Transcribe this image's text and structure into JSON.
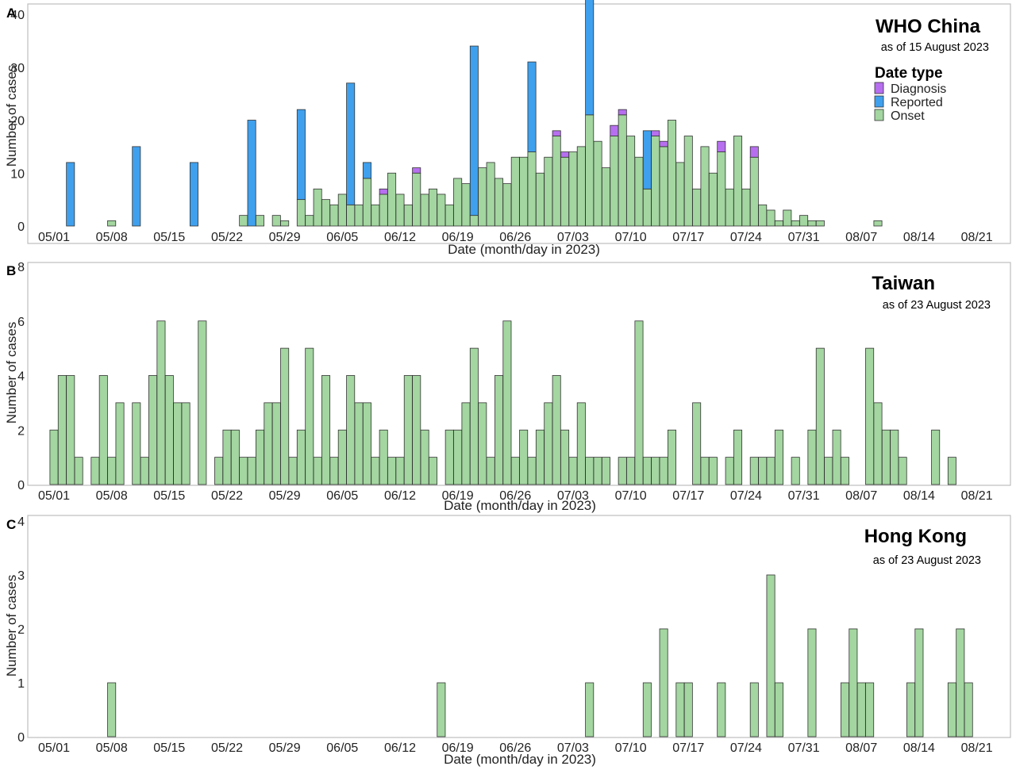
{
  "colors": {
    "Onset": "#a3d6a0",
    "Reported": "#3fa0ee",
    "Diagnosis": "#b76ff0"
  },
  "chart_data": [
    {
      "type": "bar",
      "stacked": true,
      "panel": "A",
      "title": "WHO China",
      "subtitle": "as of 15 August 2023",
      "xlabel": "Date (month/day in 2023)",
      "ylabel": "Number of cases",
      "x_start": "2023-05-01",
      "ylim": [
        0,
        40
      ],
      "yticks": [
        0,
        10,
        20,
        30,
        40
      ],
      "xtick_labels": [
        "05/01",
        "05/08",
        "05/15",
        "05/22",
        "05/29",
        "06/05",
        "06/12",
        "06/19",
        "06/26",
        "07/03",
        "07/10",
        "07/17",
        "07/24",
        "07/31",
        "08/07",
        "08/14",
        "08/21"
      ],
      "legend_title": "Date type",
      "legend": [
        "Diagnosis",
        "Reported",
        "Onset"
      ],
      "legend_position": "top-right",
      "series": [
        {
          "name": "Onset",
          "values": [
            0,
            0,
            0,
            0,
            0,
            0,
            0,
            1,
            0,
            0,
            0,
            0,
            0,
            0,
            0,
            0,
            0,
            0,
            0,
            0,
            0,
            0,
            0,
            2,
            0,
            2,
            0,
            2,
            1,
            0,
            5,
            2,
            7,
            5,
            4,
            6,
            4,
            4,
            9,
            4,
            6,
            10,
            6,
            4,
            10,
            6,
            7,
            6,
            4,
            9,
            8,
            2,
            11,
            12,
            9,
            8,
            13,
            13,
            14,
            10,
            13,
            17,
            13,
            14,
            15,
            21,
            16,
            11,
            17,
            21,
            17,
            13,
            7,
            17,
            15,
            20,
            12,
            17,
            7,
            15,
            10,
            14,
            7,
            17,
            7,
            13,
            4,
            3,
            1,
            3,
            1,
            2,
            1,
            1,
            0,
            0,
            0,
            0,
            0,
            0,
            1,
            0,
            0,
            0,
            0,
            0,
            0,
            0,
            0,
            0,
            0,
            0,
            0
          ]
        },
        {
          "name": "Reported",
          "values": [
            0,
            0,
            12,
            0,
            0,
            0,
            0,
            0,
            0,
            0,
            15,
            0,
            0,
            0,
            0,
            0,
            0,
            12,
            0,
            0,
            0,
            0,
            0,
            0,
            20,
            0,
            0,
            0,
            0,
            0,
            17,
            0,
            0,
            0,
            0,
            0,
            23,
            0,
            3,
            0,
            0,
            0,
            0,
            0,
            0,
            0,
            0,
            0,
            0,
            0,
            0,
            32,
            0,
            0,
            0,
            0,
            0,
            0,
            17,
            0,
            0,
            0,
            0,
            0,
            0,
            23,
            0,
            0,
            0,
            0,
            0,
            0,
            11,
            0,
            0,
            0,
            0,
            0,
            0,
            0,
            0,
            0,
            0,
            0,
            0,
            0,
            0,
            0,
            0,
            0,
            0,
            0,
            0,
            0,
            0,
            0,
            0,
            0,
            0,
            0,
            0,
            0,
            0,
            0,
            0,
            0,
            0,
            0,
            0,
            0,
            0,
            0,
            0
          ]
        },
        {
          "name": "Diagnosis",
          "values": [
            0,
            0,
            0,
            0,
            0,
            0,
            0,
            0,
            0,
            0,
            0,
            0,
            0,
            0,
            0,
            0,
            0,
            0,
            0,
            0,
            0,
            0,
            0,
            0,
            0,
            0,
            0,
            0,
            0,
            0,
            0,
            0,
            0,
            0,
            0,
            0,
            0,
            0,
            0,
            0,
            1,
            0,
            0,
            0,
            1,
            0,
            0,
            0,
            0,
            0,
            0,
            0,
            0,
            0,
            0,
            0,
            0,
            0,
            0,
            0,
            0,
            1,
            1,
            0,
            0,
            0,
            0,
            0,
            2,
            1,
            0,
            0,
            0,
            1,
            1,
            0,
            0,
            0,
            0,
            0,
            0,
            2,
            0,
            0,
            0,
            2,
            0,
            0,
            0,
            0,
            0,
            0,
            0,
            0,
            0,
            0,
            0,
            0,
            0,
            0,
            0,
            0,
            0,
            0,
            0,
            0,
            0,
            0,
            0,
            0,
            0,
            0,
            0
          ]
        }
      ]
    },
    {
      "type": "bar",
      "panel": "B",
      "title": "Taiwan",
      "subtitle": "as of 23 August 2023",
      "xlabel": "Date (month/day in 2023)",
      "ylabel": "Number of cases",
      "x_start": "2023-05-01",
      "ylim": [
        0,
        8
      ],
      "yticks": [
        0,
        2,
        4,
        6,
        8
      ],
      "xtick_labels": [
        "05/01",
        "05/08",
        "05/15",
        "05/22",
        "05/29",
        "06/05",
        "06/12",
        "06/19",
        "06/26",
        "07/03",
        "07/10",
        "07/17",
        "07/24",
        "07/31",
        "08/07",
        "08/14",
        "08/21"
      ],
      "series": [
        {
          "name": "Onset",
          "values": [
            2,
            4,
            4,
            1,
            0,
            1,
            4,
            1,
            3,
            0,
            3,
            1,
            4,
            6,
            4,
            3,
            3,
            0,
            6,
            0,
            1,
            2,
            2,
            1,
            1,
            2,
            3,
            3,
            5,
            1,
            2,
            5,
            1,
            4,
            1,
            2,
            4,
            3,
            3,
            1,
            2,
            1,
            1,
            4,
            4,
            2,
            1,
            0,
            2,
            2,
            3,
            5,
            3,
            1,
            4,
            6,
            1,
            2,
            1,
            2,
            3,
            4,
            2,
            1,
            3,
            1,
            1,
            1,
            0,
            1,
            1,
            6,
            1,
            1,
            1,
            2,
            0,
            0,
            3,
            1,
            1,
            0,
            1,
            2,
            0,
            1,
            1,
            1,
            2,
            0,
            1,
            0,
            2,
            5,
            1,
            2,
            1,
            0,
            0,
            5,
            3,
            2,
            2,
            1,
            0,
            0,
            0,
            2,
            0,
            1,
            0,
            0,
            0
          ]
        }
      ]
    },
    {
      "type": "bar",
      "panel": "C",
      "title": "Hong Kong",
      "subtitle": "as of 23 August 2023",
      "xlabel": "Date (month/day in 2023)",
      "ylabel": "Number of cases",
      "x_start": "2023-05-01",
      "ylim": [
        0,
        4
      ],
      "yticks": [
        0,
        1,
        2,
        3,
        4
      ],
      "xtick_labels": [
        "05/01",
        "05/08",
        "05/15",
        "05/22",
        "05/29",
        "06/05",
        "06/12",
        "06/19",
        "06/26",
        "07/03",
        "07/10",
        "07/17",
        "07/24",
        "07/31",
        "08/07",
        "08/14",
        "08/21"
      ],
      "series": [
        {
          "name": "Onset",
          "values": [
            0,
            0,
            0,
            0,
            0,
            0,
            0,
            1,
            0,
            0,
            0,
            0,
            0,
            0,
            0,
            0,
            0,
            0,
            0,
            0,
            0,
            0,
            0,
            0,
            0,
            0,
            0,
            0,
            0,
            0,
            0,
            0,
            0,
            0,
            0,
            0,
            0,
            0,
            0,
            0,
            0,
            0,
            0,
            0,
            0,
            0,
            0,
            1,
            0,
            0,
            0,
            0,
            0,
            0,
            0,
            0,
            0,
            0,
            0,
            0,
            0,
            0,
            0,
            0,
            0,
            1,
            0,
            0,
            0,
            0,
            0,
            0,
            1,
            0,
            2,
            0,
            1,
            1,
            0,
            0,
            0,
            1,
            0,
            0,
            0,
            1,
            0,
            3,
            1,
            0,
            0,
            0,
            2,
            0,
            0,
            0,
            1,
            2,
            1,
            1,
            0,
            0,
            0,
            0,
            1,
            2,
            0,
            0,
            0,
            1,
            2,
            1,
            0
          ]
        }
      ]
    }
  ]
}
